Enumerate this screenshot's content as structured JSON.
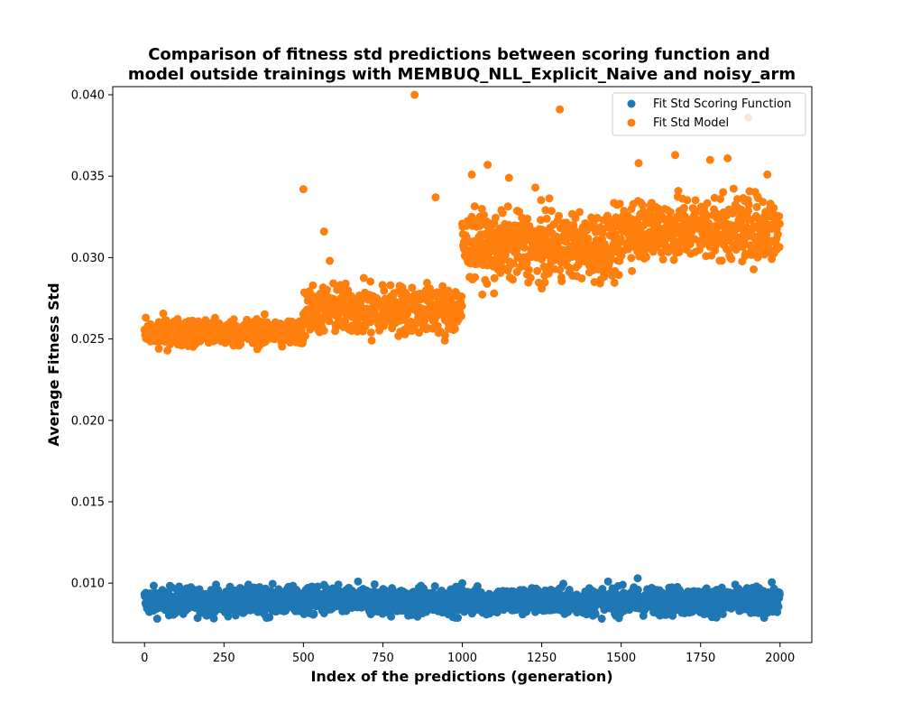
{
  "chart_data": {
    "type": "scatter",
    "title_line1": "Comparison of fitness std predictions between scoring function and",
    "title_line2": "model outside trainings with MEMBUQ_NLL_Explicit_Naive and noisy_arm",
    "xlabel": "Index of the predictions (generation)",
    "ylabel": "Average Fitness Std",
    "xlim": [
      -100,
      2100
    ],
    "ylim": [
      0.00635,
      0.0405
    ],
    "x_ticks": [
      0,
      250,
      500,
      750,
      1000,
      1250,
      1500,
      1750,
      2000
    ],
    "x_tick_labels": [
      "0",
      "250",
      "500",
      "750",
      "1000",
      "1250",
      "1500",
      "1750",
      "2000"
    ],
    "y_ticks": [
      0.01,
      0.015,
      0.02,
      0.025,
      0.03,
      0.035,
      0.04
    ],
    "y_tick_labels": [
      "0.010",
      "0.015",
      "0.020",
      "0.025",
      "0.030",
      "0.035",
      "0.040"
    ],
    "grid": false,
    "legend_position": "top-right",
    "n_points_per_series": 2000,
    "series": [
      {
        "name": "Fit Std Scoring Function",
        "color": "#1f77b4",
        "segments": [
          {
            "x_range": [
              0,
              2000
            ],
            "mean": 0.0089,
            "spread": 0.0005
          }
        ],
        "outliers": [
          [
            565,
            0.0099
          ],
          [
            672,
            0.0101
          ],
          [
            1000,
            0.01
          ],
          [
            1552,
            0.0103
          ],
          [
            830,
            0.008
          ],
          [
            502,
            0.0081
          ],
          [
            1820,
            0.0081
          ],
          [
            120,
            0.0082
          ]
        ]
      },
      {
        "name": "Fit Std Model",
        "color": "#ff7f0e",
        "segments": [
          {
            "x_range": [
              0,
              500
            ],
            "mean": 0.0254,
            "spread": 0.0005
          },
          {
            "x_range": [
              500,
              1000
            ],
            "mean": 0.0268,
            "spread": 0.0009
          },
          {
            "x_range": [
              1000,
              1500
            ],
            "mean": 0.0307,
            "spread": 0.0012
          },
          {
            "x_range": [
              1500,
              2000
            ],
            "mean": 0.0318,
            "spread": 0.0012
          }
        ],
        "outliers": [
          [
            850,
            0.04
          ],
          [
            1307,
            0.0391
          ],
          [
            1900,
            0.0386
          ],
          [
            500,
            0.0342
          ],
          [
            565,
            0.0316
          ],
          [
            583,
            0.0298
          ],
          [
            916,
            0.0337
          ],
          [
            1030,
            0.0351
          ],
          [
            1080,
            0.0357
          ],
          [
            1147,
            0.0349
          ],
          [
            1230,
            0.0343
          ],
          [
            1555,
            0.0358
          ],
          [
            1670,
            0.0363
          ],
          [
            1780,
            0.036
          ],
          [
            1835,
            0.0361
          ],
          [
            1960,
            0.0351
          ],
          [
            945,
            0.0249
          ],
          [
            715,
            0.0249
          ],
          [
            45,
            0.0244
          ],
          [
            1100,
            0.0278
          ],
          [
            1250,
            0.0281
          ]
        ]
      }
    ]
  }
}
